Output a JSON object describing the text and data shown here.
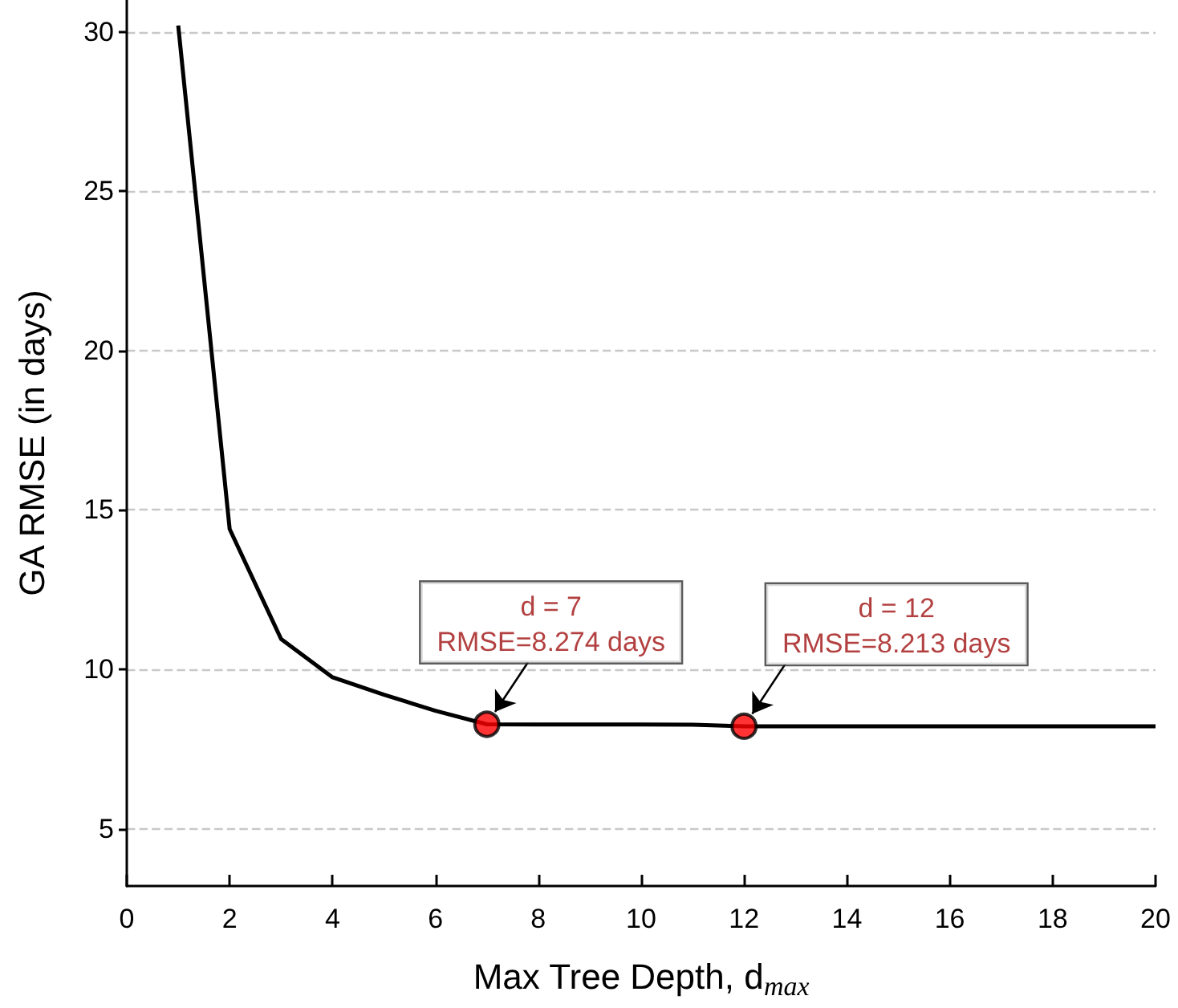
{
  "chart_data": {
    "type": "line",
    "xlabel": "Max Tree Depth, d$_{max}$",
    "ylabel": "GA RMSE (in days)",
    "x": [
      1,
      2,
      3,
      4,
      5,
      6,
      7,
      8,
      9,
      10,
      11,
      12,
      13,
      14,
      15,
      16,
      17,
      18,
      19,
      20
    ],
    "series": [
      {
        "color": "#000000",
        "values": [
          30.2,
          14.4,
          10.95,
          9.75,
          9.2,
          8.7,
          8.274,
          8.27,
          8.27,
          8.27,
          8.26,
          8.213,
          8.21,
          8.21,
          8.21,
          8.21,
          8.21,
          8.21,
          8.21,
          8.21
        ]
      }
    ],
    "xlim": [
      0,
      20
    ],
    "xticks": [
      0,
      2,
      4,
      6,
      8,
      10,
      12,
      14,
      16,
      18,
      20
    ],
    "ylim": [
      3.2,
      31
    ],
    "yticks": [
      5,
      10,
      15,
      20,
      25,
      30
    ],
    "grid": "y",
    "marker": "none",
    "line_style": "solid",
    "annotations": [
      {
        "text": "d = 7\nRMSE=8.274 days",
        "x": 7,
        "y": 8.274
      },
      {
        "text": "d = 12\nRMSE=8.213 days",
        "x": 12,
        "y": 8.213
      }
    ]
  }
}
